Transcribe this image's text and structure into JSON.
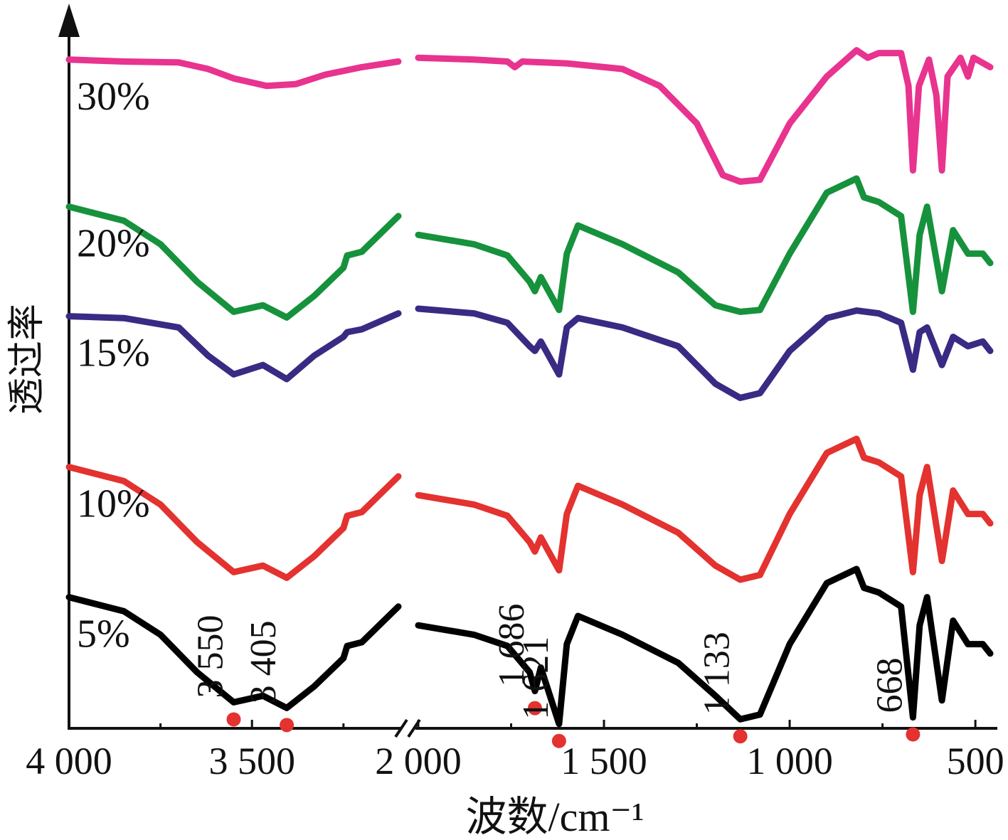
{
  "chart_data": {
    "type": "line",
    "xlabel": "波数/cm⁻¹",
    "ylabel": "透过率",
    "x_reversed": true,
    "axis_break": "//",
    "x_segments": [
      {
        "xlim": [
          4000,
          3100
        ],
        "ticks": [
          4000,
          3500
        ],
        "tick_labels": [
          "4 000",
          "3 500"
        ]
      },
      {
        "xlim": [
          2000,
          460
        ],
        "ticks": [
          2000,
          1500,
          1000,
          500
        ],
        "tick_labels": [
          "2 000",
          "1 500",
          "1 000",
          "500"
        ]
      }
    ],
    "series": [
      {
        "name": "30%",
        "color": "#e8338f",
        "offset": 4,
        "segment1": [
          [
            4000,
            0.12
          ],
          [
            3850,
            0.14
          ],
          [
            3700,
            0.15
          ],
          [
            3620,
            0.22
          ],
          [
            3550,
            0.32
          ],
          [
            3460,
            0.4
          ],
          [
            3380,
            0.38
          ],
          [
            3300,
            0.28
          ],
          [
            3200,
            0.2
          ],
          [
            3100,
            0.14
          ]
        ],
        "segment2": [
          [
            2000,
            0.1
          ],
          [
            1850,
            0.12
          ],
          [
            1760,
            0.14
          ],
          [
            1740,
            0.2
          ],
          [
            1720,
            0.14
          ],
          [
            1600,
            0.16
          ],
          [
            1450,
            0.22
          ],
          [
            1350,
            0.4
          ],
          [
            1250,
            0.8
          ],
          [
            1180,
            1.35
          ],
          [
            1133,
            1.42
          ],
          [
            1080,
            1.4
          ],
          [
            1000,
            0.8
          ],
          [
            900,
            0.3
          ],
          [
            820,
            0.02
          ],
          [
            790,
            0.1
          ],
          [
            760,
            0.05
          ],
          [
            700,
            0.05
          ],
          [
            680,
            0.4
          ],
          [
            668,
            1.3
          ],
          [
            652,
            0.4
          ],
          [
            625,
            0.12
          ],
          [
            605,
            0.5
          ],
          [
            590,
            1.3
          ],
          [
            575,
            0.3
          ],
          [
            540,
            0.1
          ],
          [
            520,
            0.3
          ],
          [
            505,
            0.1
          ],
          [
            460,
            0.2
          ]
        ]
      },
      {
        "name": "20%",
        "color": "#16923c",
        "offset": 3,
        "segment1": [
          [
            4000,
            0.3
          ],
          [
            3850,
            0.45
          ],
          [
            3750,
            0.7
          ],
          [
            3650,
            1.1
          ],
          [
            3550,
            1.42
          ],
          [
            3470,
            1.35
          ],
          [
            3405,
            1.48
          ],
          [
            3330,
            1.25
          ],
          [
            3250,
            0.95
          ],
          [
            3240,
            0.82
          ],
          [
            3200,
            0.78
          ],
          [
            3100,
            0.4
          ]
        ],
        "segment2": [
          [
            2000,
            0.6
          ],
          [
            1850,
            0.7
          ],
          [
            1760,
            0.82
          ],
          [
            1700,
            1.1
          ],
          [
            1686,
            1.2
          ],
          [
            1670,
            1.05
          ],
          [
            1621,
            1.4
          ],
          [
            1600,
            0.8
          ],
          [
            1570,
            0.5
          ],
          [
            1450,
            0.7
          ],
          [
            1300,
            1.0
          ],
          [
            1200,
            1.35
          ],
          [
            1133,
            1.42
          ],
          [
            1080,
            1.4
          ],
          [
            1000,
            0.8
          ],
          [
            900,
            0.15
          ],
          [
            820,
            0.0
          ],
          [
            800,
            0.2
          ],
          [
            760,
            0.25
          ],
          [
            700,
            0.4
          ],
          [
            668,
            1.42
          ],
          [
            650,
            0.6
          ],
          [
            630,
            0.3
          ],
          [
            590,
            1.2
          ],
          [
            560,
            0.55
          ],
          [
            520,
            0.8
          ],
          [
            480,
            0.8
          ],
          [
            460,
            0.9
          ]
        ]
      },
      {
        "name": "15%",
        "color": "#3a2a83",
        "offset": 2,
        "segment1": [
          [
            4000,
            0.08
          ],
          [
            3850,
            0.1
          ],
          [
            3700,
            0.2
          ],
          [
            3620,
            0.5
          ],
          [
            3550,
            0.7
          ],
          [
            3470,
            0.6
          ],
          [
            3405,
            0.75
          ],
          [
            3330,
            0.5
          ],
          [
            3250,
            0.3
          ],
          [
            3240,
            0.25
          ],
          [
            3200,
            0.22
          ],
          [
            3100,
            0.05
          ]
        ],
        "segment2": [
          [
            2000,
            0.0
          ],
          [
            1850,
            0.05
          ],
          [
            1760,
            0.15
          ],
          [
            1700,
            0.4
          ],
          [
            1686,
            0.45
          ],
          [
            1670,
            0.35
          ],
          [
            1621,
            0.7
          ],
          [
            1600,
            0.2
          ],
          [
            1570,
            0.1
          ],
          [
            1450,
            0.2
          ],
          [
            1300,
            0.4
          ],
          [
            1200,
            0.8
          ],
          [
            1133,
            0.95
          ],
          [
            1080,
            0.9
          ],
          [
            1000,
            0.45
          ],
          [
            900,
            0.1
          ],
          [
            820,
            0.02
          ],
          [
            760,
            0.05
          ],
          [
            700,
            0.15
          ],
          [
            668,
            0.65
          ],
          [
            650,
            0.25
          ],
          [
            630,
            0.2
          ],
          [
            590,
            0.6
          ],
          [
            560,
            0.3
          ],
          [
            520,
            0.4
          ],
          [
            480,
            0.35
          ],
          [
            460,
            0.45
          ]
        ]
      },
      {
        "name": "10%",
        "color": "#e3322f",
        "offset": 1,
        "segment1": [
          [
            4000,
            0.3
          ],
          [
            3850,
            0.45
          ],
          [
            3750,
            0.7
          ],
          [
            3650,
            1.1
          ],
          [
            3550,
            1.42
          ],
          [
            3470,
            1.35
          ],
          [
            3405,
            1.48
          ],
          [
            3330,
            1.25
          ],
          [
            3250,
            0.95
          ],
          [
            3240,
            0.82
          ],
          [
            3200,
            0.78
          ],
          [
            3100,
            0.4
          ]
        ],
        "segment2": [
          [
            2000,
            0.6
          ],
          [
            1850,
            0.7
          ],
          [
            1760,
            0.82
          ],
          [
            1700,
            1.1
          ],
          [
            1686,
            1.2
          ],
          [
            1670,
            1.05
          ],
          [
            1621,
            1.4
          ],
          [
            1600,
            0.8
          ],
          [
            1570,
            0.5
          ],
          [
            1450,
            0.7
          ],
          [
            1300,
            1.0
          ],
          [
            1200,
            1.35
          ],
          [
            1133,
            1.5
          ],
          [
            1080,
            1.45
          ],
          [
            1000,
            0.8
          ],
          [
            900,
            0.15
          ],
          [
            820,
            0.0
          ],
          [
            800,
            0.2
          ],
          [
            760,
            0.25
          ],
          [
            700,
            0.4
          ],
          [
            668,
            1.42
          ],
          [
            650,
            0.6
          ],
          [
            630,
            0.3
          ],
          [
            590,
            1.3
          ],
          [
            560,
            0.55
          ],
          [
            520,
            0.8
          ],
          [
            480,
            0.8
          ],
          [
            460,
            0.9
          ]
        ]
      },
      {
        "name": "5%",
        "color": "#000000",
        "offset": 0,
        "segment1": [
          [
            4000,
            0.3
          ],
          [
            3850,
            0.45
          ],
          [
            3750,
            0.7
          ],
          [
            3650,
            1.1
          ],
          [
            3550,
            1.42
          ],
          [
            3470,
            1.35
          ],
          [
            3405,
            1.48
          ],
          [
            3330,
            1.25
          ],
          [
            3250,
            0.95
          ],
          [
            3240,
            0.82
          ],
          [
            3200,
            0.78
          ],
          [
            3100,
            0.4
          ]
        ],
        "segment2": [
          [
            2000,
            0.6
          ],
          [
            1850,
            0.7
          ],
          [
            1760,
            0.82
          ],
          [
            1700,
            1.1
          ],
          [
            1686,
            1.3
          ],
          [
            1670,
            1.05
          ],
          [
            1621,
            1.65
          ],
          [
            1600,
            0.8
          ],
          [
            1570,
            0.5
          ],
          [
            1450,
            0.7
          ],
          [
            1300,
            1.0
          ],
          [
            1200,
            1.35
          ],
          [
            1133,
            1.6
          ],
          [
            1080,
            1.55
          ],
          [
            1000,
            0.8
          ],
          [
            900,
            0.15
          ],
          [
            820,
            0.0
          ],
          [
            800,
            0.2
          ],
          [
            760,
            0.25
          ],
          [
            700,
            0.4
          ],
          [
            668,
            1.58
          ],
          [
            650,
            0.6
          ],
          [
            630,
            0.3
          ],
          [
            590,
            1.4
          ],
          [
            560,
            0.55
          ],
          [
            520,
            0.8
          ],
          [
            480,
            0.8
          ],
          [
            460,
            0.9
          ]
        ]
      }
    ],
    "peaks": [
      {
        "x": 3550,
        "label": "3 550"
      },
      {
        "x": 3405,
        "label": "3 405"
      },
      {
        "x": 1686,
        "label": "1 686"
      },
      {
        "x": 1621,
        "label": "1 621"
      },
      {
        "x": 1133,
        "label": "1 133"
      },
      {
        "x": 668,
        "label": "668"
      }
    ],
    "marker_color": "#e3322f"
  }
}
